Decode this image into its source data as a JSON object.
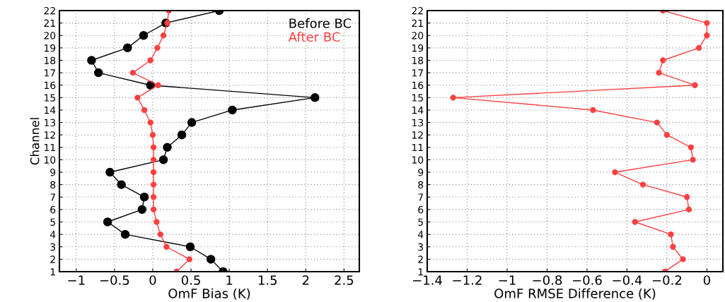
{
  "chart_data": [
    {
      "type": "line",
      "orientation": "horizontal",
      "ylabel": "Channel",
      "xlabel": "OmF Bias (K)",
      "categories": [
        "22",
        "21",
        "20",
        "19",
        "18",
        "17",
        "16",
        "15",
        "14",
        "13",
        "12",
        "11",
        "10",
        "9",
        "8",
        "7",
        "6",
        "5",
        "4",
        "3",
        "2",
        "1"
      ],
      "series": [
        {
          "name": "Before BC",
          "color": "#000000",
          "values": [
            0.87,
            0.17,
            -0.12,
            -0.33,
            -0.8,
            -0.71,
            -0.03,
            2.12,
            1.04,
            0.51,
            0.38,
            0.19,
            0.14,
            -0.56,
            -0.41,
            -0.11,
            -0.14,
            -0.59,
            -0.36,
            0.49,
            0.76,
            0.92
          ]
        },
        {
          "name": "After BC",
          "color": "#ff4040",
          "values": [
            0.21,
            0.19,
            0.14,
            0.06,
            -0.03,
            -0.26,
            0.07,
            -0.2,
            -0.11,
            -0.03,
            0.0,
            0.01,
            0.01,
            0.01,
            0.01,
            0.01,
            0.01,
            0.05,
            0.1,
            0.18,
            0.48,
            0.31
          ]
        }
      ],
      "xlim": [
        -1.22,
        2.7
      ],
      "xticks": [
        -1,
        -0.5,
        0,
        0.5,
        1,
        1.5,
        2,
        2.5
      ],
      "grid": true,
      "legend": "top right",
      "marker": "circle",
      "line_style": "solid"
    },
    {
      "type": "line",
      "orientation": "horizontal",
      "xlabel": "OmF RMSE Difference (K)",
      "categories": [
        "22",
        "21",
        "20",
        "19",
        "18",
        "17",
        "16",
        "15",
        "14",
        "13",
        "12",
        "11",
        "10",
        "9",
        "8",
        "7",
        "6",
        "5",
        "4",
        "3",
        "2",
        "1"
      ],
      "series": [
        {
          "color": "#ff4040",
          "values": [
            -0.22,
            0.0,
            0.0,
            -0.04,
            -0.22,
            -0.24,
            -0.06,
            -1.27,
            -0.57,
            -0.25,
            -0.2,
            -0.08,
            -0.07,
            -0.46,
            -0.32,
            -0.1,
            -0.09,
            -0.36,
            -0.18,
            -0.17,
            -0.12,
            -0.21
          ]
        }
      ],
      "xlim": [
        -1.4,
        0.08
      ],
      "xticks": [
        -1.4,
        -1.2,
        -1,
        -0.8,
        -0.6,
        -0.4,
        -0.2,
        0
      ],
      "grid": true,
      "marker": "circle",
      "line_style": "solid"
    }
  ]
}
